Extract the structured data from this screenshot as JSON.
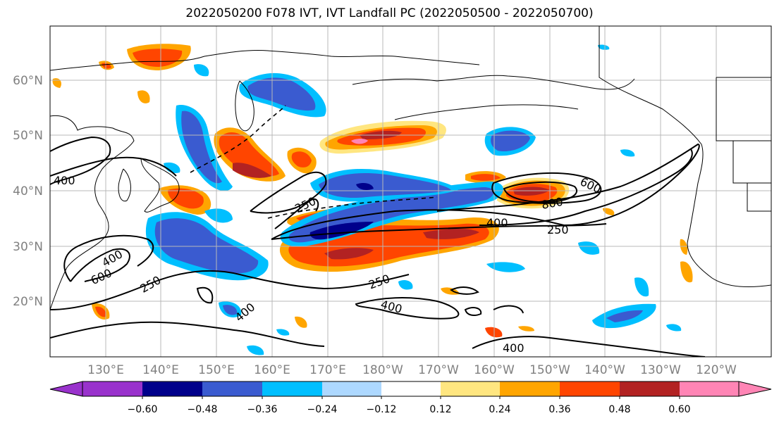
{
  "title": "2022050200 F078 IVT, IVT Landfall PC (2022050500 - 2022050700)",
  "lat_labels": [
    "60°N",
    "50°N",
    "40°N",
    "30°N",
    "20°N"
  ],
  "lon_labels": [
    "130°E",
    "140°E",
    "150°E",
    "160°E",
    "170°E",
    "180°W",
    "170°W",
    "160°W",
    "150°W",
    "140°W",
    "130°W",
    "120°W"
  ],
  "contour_labels": [
    "250",
    "400",
    "600",
    "800",
    "250",
    "400",
    "250",
    "400",
    "600",
    "250",
    "400",
    "400",
    "400"
  ],
  "colorbar": {
    "colors": [
      "#9932cc",
      "#00008b",
      "#3a5bd0",
      "#00bfff",
      "#add8ff",
      "#ffffff",
      "#ffffff",
      "#ffe680",
      "#ffa500",
      "#ff4500",
      "#b22222",
      "#ff85b5"
    ],
    "ticks": [
      "−0.60",
      "−0.48",
      "−0.36",
      "−0.24",
      "−0.12",
      "0.12",
      "0.24",
      "0.36",
      "0.48",
      "0.60"
    ]
  },
  "palette": {
    "pos1": "#ffe680",
    "pos2": "#ffa500",
    "pos3": "#ff4500",
    "pos4": "#b22222",
    "pos5": "#ff85b5",
    "neg1": "#add8ff",
    "neg2": "#00bfff",
    "neg3": "#3a5bd0",
    "neg4": "#00008b"
  }
}
